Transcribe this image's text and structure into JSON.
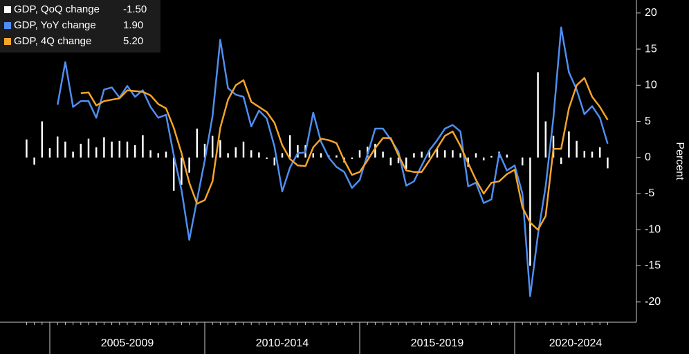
{
  "chart_data": {
    "type": "bar_line",
    "categories": [
      null,
      null,
      null,
      null,
      null,
      null,
      null,
      null,
      null,
      null,
      null,
      null,
      null,
      null,
      null,
      null,
      null,
      null,
      null,
      null,
      null,
      null,
      null,
      null,
      null,
      null,
      null,
      null,
      null,
      null,
      null,
      null,
      null,
      null,
      null,
      null,
      null,
      null,
      null,
      null,
      null,
      null,
      null,
      null,
      null,
      null,
      null,
      null,
      null,
      null,
      null,
      null,
      null,
      null,
      null,
      null,
      null,
      null,
      null,
      null,
      null,
      null,
      null,
      null,
      null,
      null,
      null,
      null,
      null,
      null,
      null,
      null,
      null,
      null,
      null,
      null
    ],
    "x_group_labels": [
      "2005-2009",
      "2010-2014",
      "2015-2019",
      "2020-2024"
    ],
    "y_axis_label": "Percent",
    "ylim": [
      -22.8,
      21.8
    ],
    "yticks": [
      20,
      15,
      10,
      5,
      0,
      -5,
      -10,
      -15,
      -20
    ],
    "series": [
      {
        "name": "GDP, QoQ change",
        "legend_value": "-1.50",
        "kind": "bar",
        "color": "#ffffff",
        "values": [
          2.5,
          -1.0,
          5.0,
          1.3,
          2.9,
          2.2,
          0.8,
          1.9,
          2.6,
          1.4,
          2.8,
          2.2,
          2.3,
          2.2,
          1.7,
          3.1,
          1.0,
          0.6,
          0.8,
          -4.6,
          -3.8,
          -2.1,
          4.0,
          1.9,
          3.0,
          2.4,
          0.6,
          1.4,
          2.2,
          1.0,
          0.7,
          -0.2,
          -1.1,
          0.6,
          3.1,
          1.7,
          1.7,
          0.6,
          0.6,
          0.3,
          0.3,
          -0.7,
          -0.2,
          1.0,
          1.5,
          1.9,
          0.8,
          -1.1,
          -0.8,
          -1.6,
          0.6,
          0.8,
          0.9,
          1.2,
          1.0,
          1.0,
          0.6,
          -1.3,
          0.6,
          -0.4,
          0.2,
          0.8,
          0.4,
          0,
          -1.1,
          -15.0,
          11.8,
          5.0,
          3.0,
          -0.9,
          3.6,
          2.3,
          0.9,
          0.8,
          1.4,
          -1.5
        ]
      },
      {
        "name": "GDP, YoY change",
        "legend_value": "1.90",
        "kind": "line",
        "color": "#4f8ef0",
        "values": [
          null,
          null,
          null,
          null,
          7.3,
          13.2,
          7.0,
          7.8,
          7.8,
          5.5,
          9.4,
          9.7,
          8.3,
          9.9,
          8.4,
          9.3,
          7.0,
          5.5,
          5.9,
          0.3,
          -4.5,
          -11.4,
          -5.9,
          -0.4,
          5.7,
          16.3,
          9.6,
          8.7,
          8.4,
          4.3,
          6.5,
          5.4,
          1.5,
          -4.7,
          -1.4,
          0.6,
          0.7,
          6.2,
          2.2,
          0,
          -1.3,
          -2.0,
          -4.2,
          -3.1,
          0.4,
          4.0,
          4.0,
          2.5,
          0.8,
          -3.9,
          -3.3,
          -1.1,
          1.0,
          2.4,
          4.0,
          4.5,
          3.6,
          -4.0,
          -3.5,
          -6.3,
          -5.8,
          0.6,
          -1.8,
          -1.1,
          -5.0,
          -19.2,
          -10.7,
          -4.0,
          5.5,
          18.0,
          11.8,
          9.4,
          6.0,
          7.1,
          5.5,
          1.9
        ]
      },
      {
        "name": "GDP, 4Q change",
        "legend_value": "5.20",
        "kind": "line",
        "color": "#f5a52a",
        "values": [
          null,
          null,
          null,
          null,
          null,
          null,
          null,
          8.9,
          9.0,
          7.2,
          7.8,
          8.0,
          8.2,
          9.3,
          9.2,
          9.1,
          8.6,
          7.4,
          6.8,
          4.1,
          0.6,
          -3.5,
          -6.4,
          -5.9,
          -3.3,
          4.1,
          8.0,
          10.0,
          10.7,
          7.7,
          7.0,
          6.3,
          4.8,
          1.7,
          -0.2,
          -1.1,
          -1.2,
          1.4,
          2.6,
          2.4,
          2.0,
          -0.4,
          -2.4,
          -2.0,
          -0.4,
          1.3,
          2.7,
          2.7,
          0.3,
          -1.8,
          -2.0,
          -2.0,
          -0.4,
          1.3,
          3.0,
          3.6,
          1.6,
          -0.8,
          -3.1,
          -5.0,
          -3.5,
          -3.3,
          -2.3,
          -1.7,
          -6.9,
          -9.0,
          -10.0,
          -8.1,
          1.2,
          1.2,
          6.8,
          10.0,
          11.0,
          8.4,
          7.0,
          5.2
        ]
      }
    ]
  }
}
